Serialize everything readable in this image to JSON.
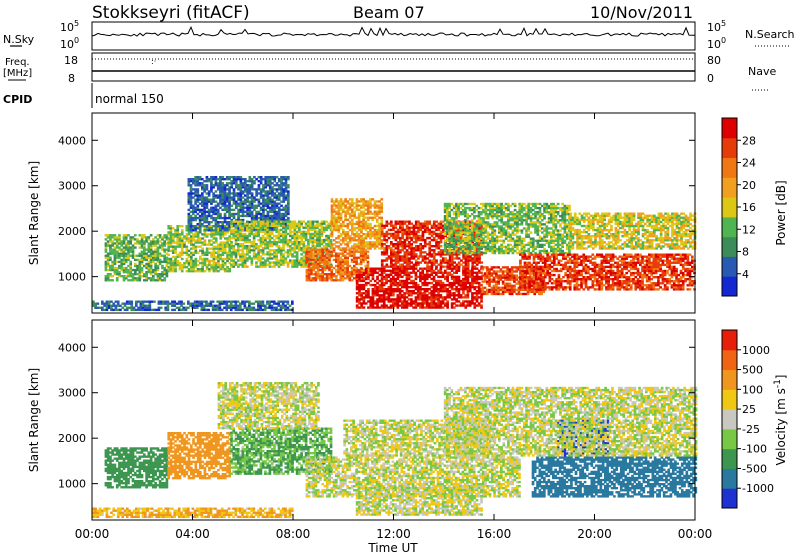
{
  "header": {
    "station": "Stokkseyri (fitACF)",
    "beam": "Beam 07",
    "date": "10/Nov/2011"
  },
  "strips": {
    "nsky_label": "N.Sky",
    "nsearch_label": "N.Search",
    "freq_label": "Freq.",
    "freq_unit": "[MHz]",
    "nave_label": "Nave",
    "cpid_label": "CPID",
    "cpid_value": "normal 150",
    "nsky_ticks": [
      "10^5",
      "10^0"
    ],
    "nsearch_ticks": [
      "10^5",
      "10^0"
    ],
    "freq_ticks": [
      "18",
      "8"
    ],
    "nave_ticks": [
      "80",
      "0"
    ]
  },
  "chart_data": [
    {
      "type": "heatmap",
      "name": "power",
      "ylabel": "Slant Range [km]",
      "xlabel": "Time UT",
      "ylim": [
        200,
        4600
      ],
      "yticks": [
        1000,
        2000,
        3000,
        4000
      ],
      "xticks": [
        "00:00",
        "04:00",
        "08:00",
        "12:00",
        "16:00",
        "20:00",
        "00:00"
      ],
      "colorbar": {
        "label": "Power [dB]",
        "ticks": [
          "28",
          "24",
          "20",
          "16",
          "12",
          "8",
          "4"
        ],
        "colors": [
          "#1428d2",
          "#285ab4",
          "#3c8c5a",
          "#50b450",
          "#dcc814",
          "#f0a01e",
          "#f07814",
          "#e63c0a",
          "#dc0000"
        ]
      },
      "regions": [
        {
          "t0": 0.5,
          "t1": 3.0,
          "r0": 900,
          "r1": 1900,
          "level": 12
        },
        {
          "t0": 3.0,
          "t1": 5.5,
          "r0": 1100,
          "r1": 2100,
          "level": 14
        },
        {
          "t0": 3.8,
          "t1": 7.8,
          "r0": 2000,
          "r1": 3200,
          "level": 6
        },
        {
          "t0": 5.5,
          "t1": 9.5,
          "r0": 1200,
          "r1": 2200,
          "level": 14
        },
        {
          "t0": 8.5,
          "t1": 11.0,
          "r0": 900,
          "r1": 1600,
          "level": 24
        },
        {
          "t0": 9.5,
          "t1": 11.5,
          "r0": 1600,
          "r1": 2700,
          "level": 20
        },
        {
          "t0": 10.5,
          "t1": 15.5,
          "r0": 300,
          "r1": 1200,
          "level": 30
        },
        {
          "t0": 11.5,
          "t1": 15.5,
          "r0": 1200,
          "r1": 2200,
          "level": 28
        },
        {
          "t0": 15.5,
          "t1": 18.0,
          "r0": 600,
          "r1": 1200,
          "level": 26
        },
        {
          "t0": 14.0,
          "t1": 19.0,
          "r0": 1500,
          "r1": 2600,
          "level": 13
        },
        {
          "t0": 17.0,
          "t1": 24.0,
          "r0": 700,
          "r1": 1500,
          "level": 27
        },
        {
          "t0": 19.0,
          "t1": 24.0,
          "r0": 1600,
          "r1": 2400,
          "level": 16
        },
        {
          "t0": 0.0,
          "t1": 8.0,
          "r0": 250,
          "r1": 450,
          "level": 6
        }
      ]
    },
    {
      "type": "heatmap",
      "name": "velocity",
      "ylabel": "Slant Range [km]",
      "xlabel": "Time UT",
      "ylim": [
        200,
        4600
      ],
      "yticks": [
        1000,
        2000,
        3000,
        4000
      ],
      "xticks": [
        "00:00",
        "04:00",
        "08:00",
        "12:00",
        "16:00",
        "20:00",
        "00:00"
      ],
      "colorbar": {
        "label": "Velocity [m s^-1]",
        "ticks": [
          "1000",
          "500",
          "100",
          "25",
          "-25",
          "-100",
          "-500",
          "-1000"
        ],
        "colors": [
          "#1e32d2",
          "#2878a0",
          "#3c9650",
          "#78c846",
          "#c8c8c0",
          "#f0c814",
          "#f0961e",
          "#f06414",
          "#e61e0a"
        ]
      },
      "regions": [
        {
          "t0": 0.5,
          "t1": 3.0,
          "r0": 900,
          "r1": 1800,
          "level": -300
        },
        {
          "t0": 3.0,
          "t1": 5.5,
          "r0": 1100,
          "r1": 2100,
          "level": 250
        },
        {
          "t0": 5.5,
          "t1": 9.5,
          "r0": 1200,
          "r1": 2200,
          "level": -100
        },
        {
          "t0": 5.0,
          "t1": 9.0,
          "r0": 2200,
          "r1": 3200,
          "level": 0
        },
        {
          "t0": 8.5,
          "t1": 17.0,
          "r0": 700,
          "r1": 1600,
          "level": 0
        },
        {
          "t0": 10.5,
          "t1": 15.5,
          "r0": 300,
          "r1": 900,
          "level": 0
        },
        {
          "t0": 10.0,
          "t1": 16.0,
          "r0": 1600,
          "r1": 2400,
          "level": 0
        },
        {
          "t0": 17.5,
          "t1": 24.0,
          "r0": 700,
          "r1": 1600,
          "level": -600
        },
        {
          "t0": 18.5,
          "t1": 20.5,
          "r0": 1600,
          "r1": 2400,
          "level": -1000
        },
        {
          "t0": 14.0,
          "t1": 24.0,
          "r0": 1600,
          "r1": 3100,
          "level": 0
        },
        {
          "t0": 0.0,
          "t1": 8.0,
          "r0": 250,
          "r1": 450,
          "level": 100
        }
      ]
    }
  ]
}
